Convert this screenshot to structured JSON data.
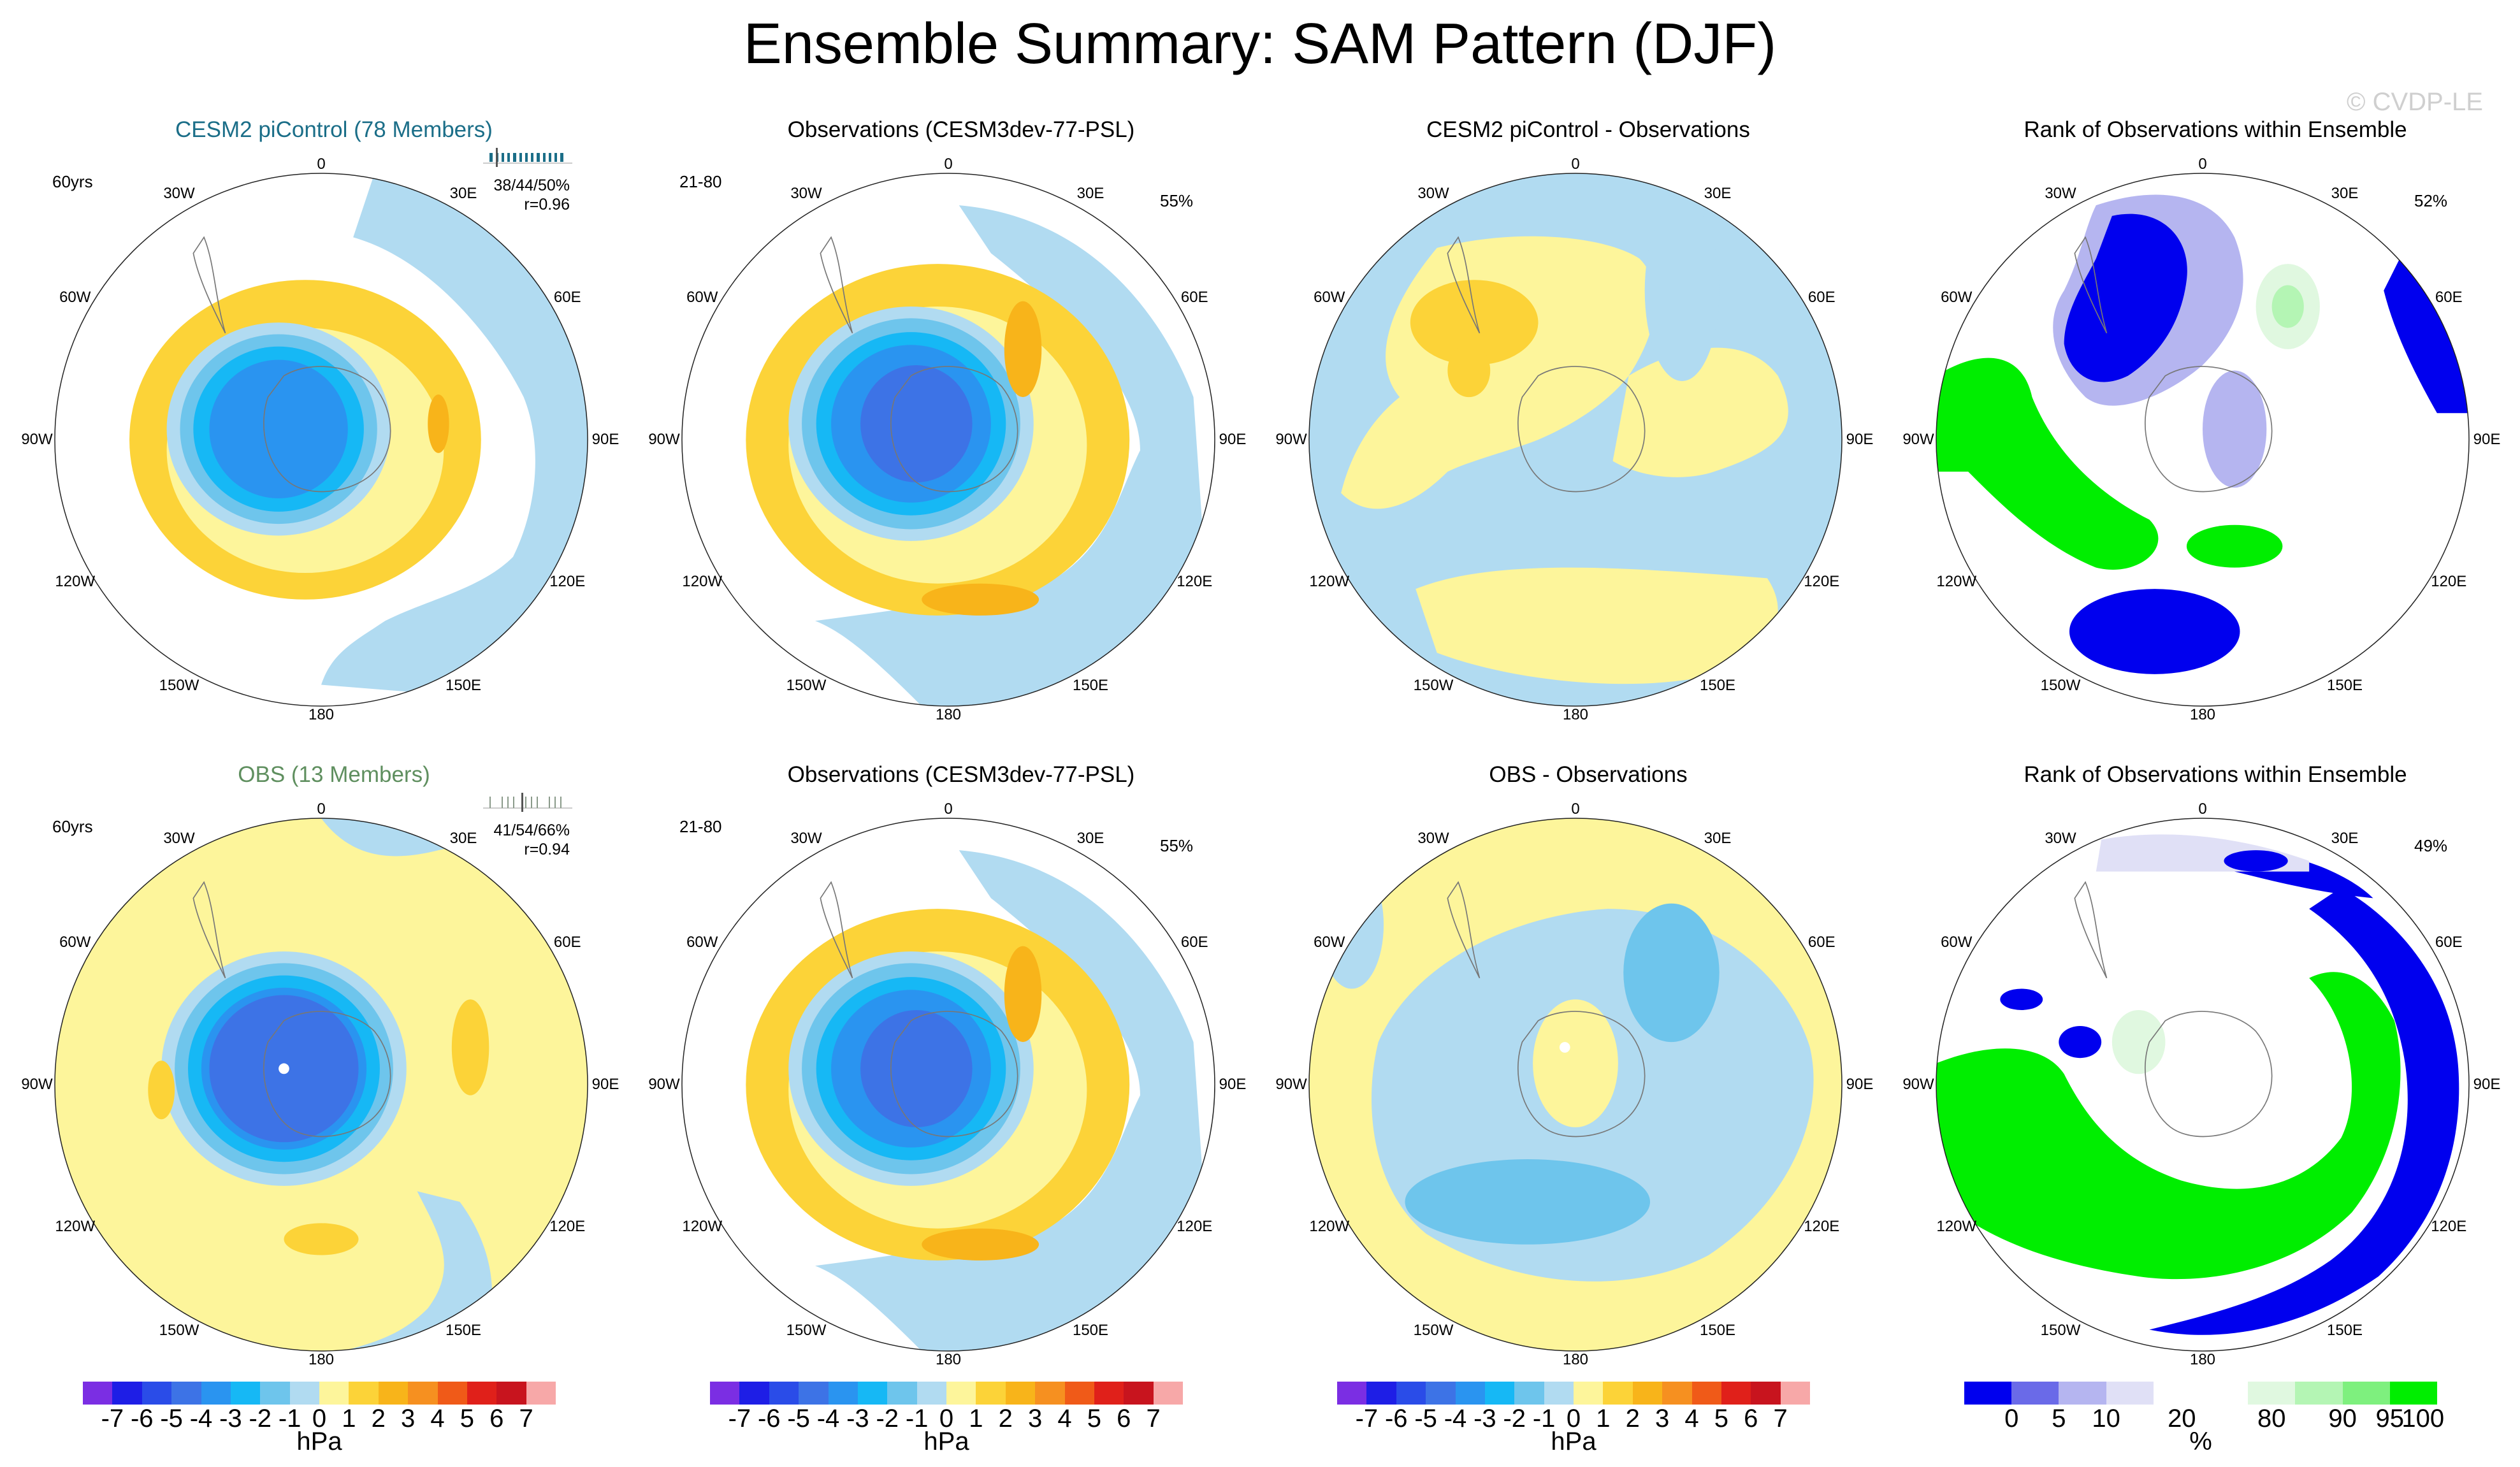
{
  "title": "Ensemble Summary: SAM Pattern (DJF)",
  "watermark": "© CVDP-LE",
  "lon_labels": [
    "0",
    "30E",
    "60E",
    "90E",
    "120E",
    "150E",
    "180",
    "150W",
    "120W",
    "90W",
    "60W",
    "30W"
  ],
  "panels": [
    {
      "title": "CESM2 piControl (78 Members)",
      "title_color": "#1b6e88",
      "left": "60yrs",
      "right": "",
      "stat1": "38/44/50%",
      "stat2": "r=0.96",
      "kind": "hpa",
      "pattern": "cesm"
    },
    {
      "title": "Observations (CESM3dev-77-PSL)",
      "title_color": "#000000",
      "left": "21-80",
      "right": "55%",
      "stat1": "",
      "stat2": "",
      "kind": "hpa",
      "pattern": "obs"
    },
    {
      "title": "CESM2 piControl - Observations",
      "title_color": "#000000",
      "left": "",
      "right": "",
      "stat1": "",
      "stat2": "",
      "kind": "hpa",
      "pattern": "diff1"
    },
    {
      "title": "Rank of Observations within Ensemble",
      "title_color": "#000000",
      "left": "",
      "right": "52%",
      "stat1": "",
      "stat2": "",
      "kind": "rank",
      "pattern": "rank1"
    },
    {
      "title": "OBS (13 Members)",
      "title_color": "#5f8f5f",
      "left": "60yrs",
      "right": "",
      "stat1": "41/54/66%",
      "stat2": "r=0.94",
      "kind": "hpa",
      "pattern": "obsens"
    },
    {
      "title": "Observations (CESM3dev-77-PSL)",
      "title_color": "#000000",
      "left": "21-80",
      "right": "55%",
      "stat1": "",
      "stat2": "",
      "kind": "hpa",
      "pattern": "obs"
    },
    {
      "title": "OBS - Observations",
      "title_color": "#000000",
      "left": "",
      "right": "",
      "stat1": "",
      "stat2": "",
      "kind": "hpa",
      "pattern": "diff2"
    },
    {
      "title": "Rank of Observations within Ensemble",
      "title_color": "#000000",
      "left": "",
      "right": "49%",
      "stat1": "",
      "stat2": "",
      "kind": "rank",
      "pattern": "rank2"
    }
  ],
  "hpa_colorbar": {
    "colors": [
      "#7b2ee3",
      "#1e1ee6",
      "#2a4ce8",
      "#3d73e6",
      "#2a94f0",
      "#16b8f5",
      "#6ec5ec",
      "#b1dbf1",
      "#fdf59b",
      "#fcd338",
      "#f8b41a",
      "#f69020",
      "#f05a18",
      "#e0201a",
      "#c8141e",
      "#f7a8a8"
    ],
    "ticks": [
      "-7",
      "-6",
      "-5",
      "-4",
      "-3",
      "-2",
      "-1",
      "0",
      "1",
      "2",
      "3",
      "4",
      "5",
      "6",
      "7"
    ],
    "unit": "hPa"
  },
  "rank_colorbar": {
    "colors": [
      "#0000ee",
      "#6a6ae8",
      "#b5b5f0",
      "#e0e0f6",
      "#ffffff",
      "#ffffff",
      "#e0f8e0",
      "#b4f5b4",
      "#7ef07e",
      "#00ee00"
    ],
    "ticks": [
      "0",
      "5",
      "10",
      "20",
      "80",
      "90",
      "95",
      "100"
    ],
    "unit": "%"
  }
}
